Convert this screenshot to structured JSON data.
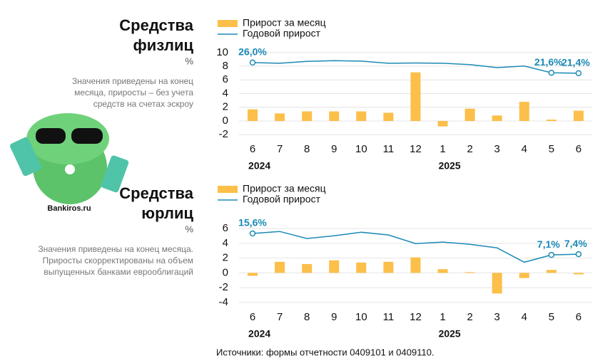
{
  "chart_data": [
    {
      "type": "bar_line",
      "title": [
        "Средства",
        "физлиц"
      ],
      "unit": "%",
      "note": [
        "Значения приведены на конец",
        "месяца, приросты – без учета",
        "средств на счетах эскроу"
      ],
      "categories": [
        "6",
        "7",
        "8",
        "9",
        "10",
        "11",
        "12",
        "1",
        "2",
        "3",
        "4",
        "5",
        "6"
      ],
      "years": [
        "2024",
        "2025"
      ],
      "series": [
        {
          "name": "Прирост за месяц",
          "color": "#fbbf4a",
          "kind": "bar",
          "values": [
            1.7,
            1.1,
            1.4,
            1.4,
            1.4,
            1.2,
            7.1,
            -0.8,
            1.8,
            0.8,
            2.8,
            0.2,
            1.5
          ]
        },
        {
          "name": "Годовой прирост",
          "color": "#1a8ab5",
          "kind": "line",
          "axis": "y2",
          "values": [
            26.0,
            25.7,
            26.5,
            26.8,
            26.6,
            25.7,
            25.8,
            25.7,
            25.1,
            23.8,
            24.5,
            21.6,
            21.4
          ],
          "value_labels": [
            "26,0%",
            null,
            null,
            null,
            null,
            null,
            null,
            null,
            null,
            null,
            null,
            "21,6%",
            "21,4%"
          ]
        }
      ],
      "ylim": [
        -2.5,
        10.5
      ],
      "yticks": [
        -2,
        0,
        2,
        4,
        6,
        8,
        10
      ],
      "y2lim": [
        -6.6,
        31.8
      ]
    },
    {
      "type": "bar_line",
      "title": [
        "Средства",
        "юрлиц"
      ],
      "unit": "%",
      "note": [
        "Значения приведены на конец месяца.",
        "Приросты скорректированы на объем",
        "выпущенных банками еврооблигаций"
      ],
      "categories": [
        "6",
        "7",
        "8",
        "9",
        "10",
        "11",
        "12",
        "1",
        "2",
        "3",
        "4",
        "5",
        "6"
      ],
      "years": [
        "2024",
        "2025"
      ],
      "series": [
        {
          "name": "Прирост за месяц",
          "color": "#fbbf4a",
          "kind": "bar",
          "values": [
            -0.4,
            1.5,
            1.2,
            1.7,
            1.4,
            1.5,
            2.1,
            0.5,
            0.1,
            -2.8,
            -0.7,
            0.4,
            -0.2
          ]
        },
        {
          "name": "Годовой прирост",
          "color": "#1a8ab5",
          "kind": "line",
          "axis": "y2",
          "values": [
            15.6,
            16.4,
            13.6,
            14.7,
            16.1,
            15.0,
            11.6,
            12.2,
            11.3,
            9.9,
            4.2,
            7.1,
            7.4
          ],
          "value_labels": [
            "15,6%",
            null,
            null,
            null,
            null,
            null,
            null,
            null,
            null,
            null,
            null,
            "7,1%",
            "7,4%"
          ]
        }
      ],
      "ylim": [
        -4.5,
        6.5
      ],
      "yticks": [
        -4,
        -2,
        0,
        2,
        4,
        6
      ],
      "y2lim": [
        -13.2,
        19.0
      ]
    }
  ],
  "watermark": "Bankiros.ru",
  "source": "Источники: формы отчетности 0409101 и 0409110."
}
